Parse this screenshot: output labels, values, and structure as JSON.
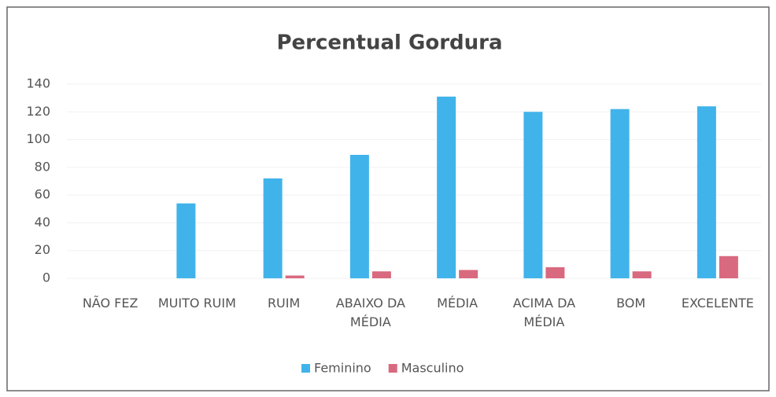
{
  "chart_data": {
    "type": "bar",
    "title": "Percentual Gordura",
    "categories": [
      "NÃO FEZ",
      "MUITO RUIM",
      "RUIM",
      "ABAIXO DA MÉDIA",
      "MÉDIA",
      "ACIMA DA MÉDIA",
      "BOM",
      "EXCELENTE"
    ],
    "series": [
      {
        "name": "Feminino",
        "color": "#41b3eb",
        "values": [
          0,
          54,
          72,
          89,
          131,
          120,
          122,
          124
        ]
      },
      {
        "name": "Masculino",
        "color": "#d9697f",
        "values": [
          0,
          0,
          2,
          5,
          6,
          8,
          5,
          16
        ]
      }
    ],
    "ylim": [
      0,
      140
    ],
    "yticks": [
      0,
      20,
      40,
      60,
      80,
      100,
      120,
      140
    ],
    "grid": true,
    "legend": "bottom"
  }
}
